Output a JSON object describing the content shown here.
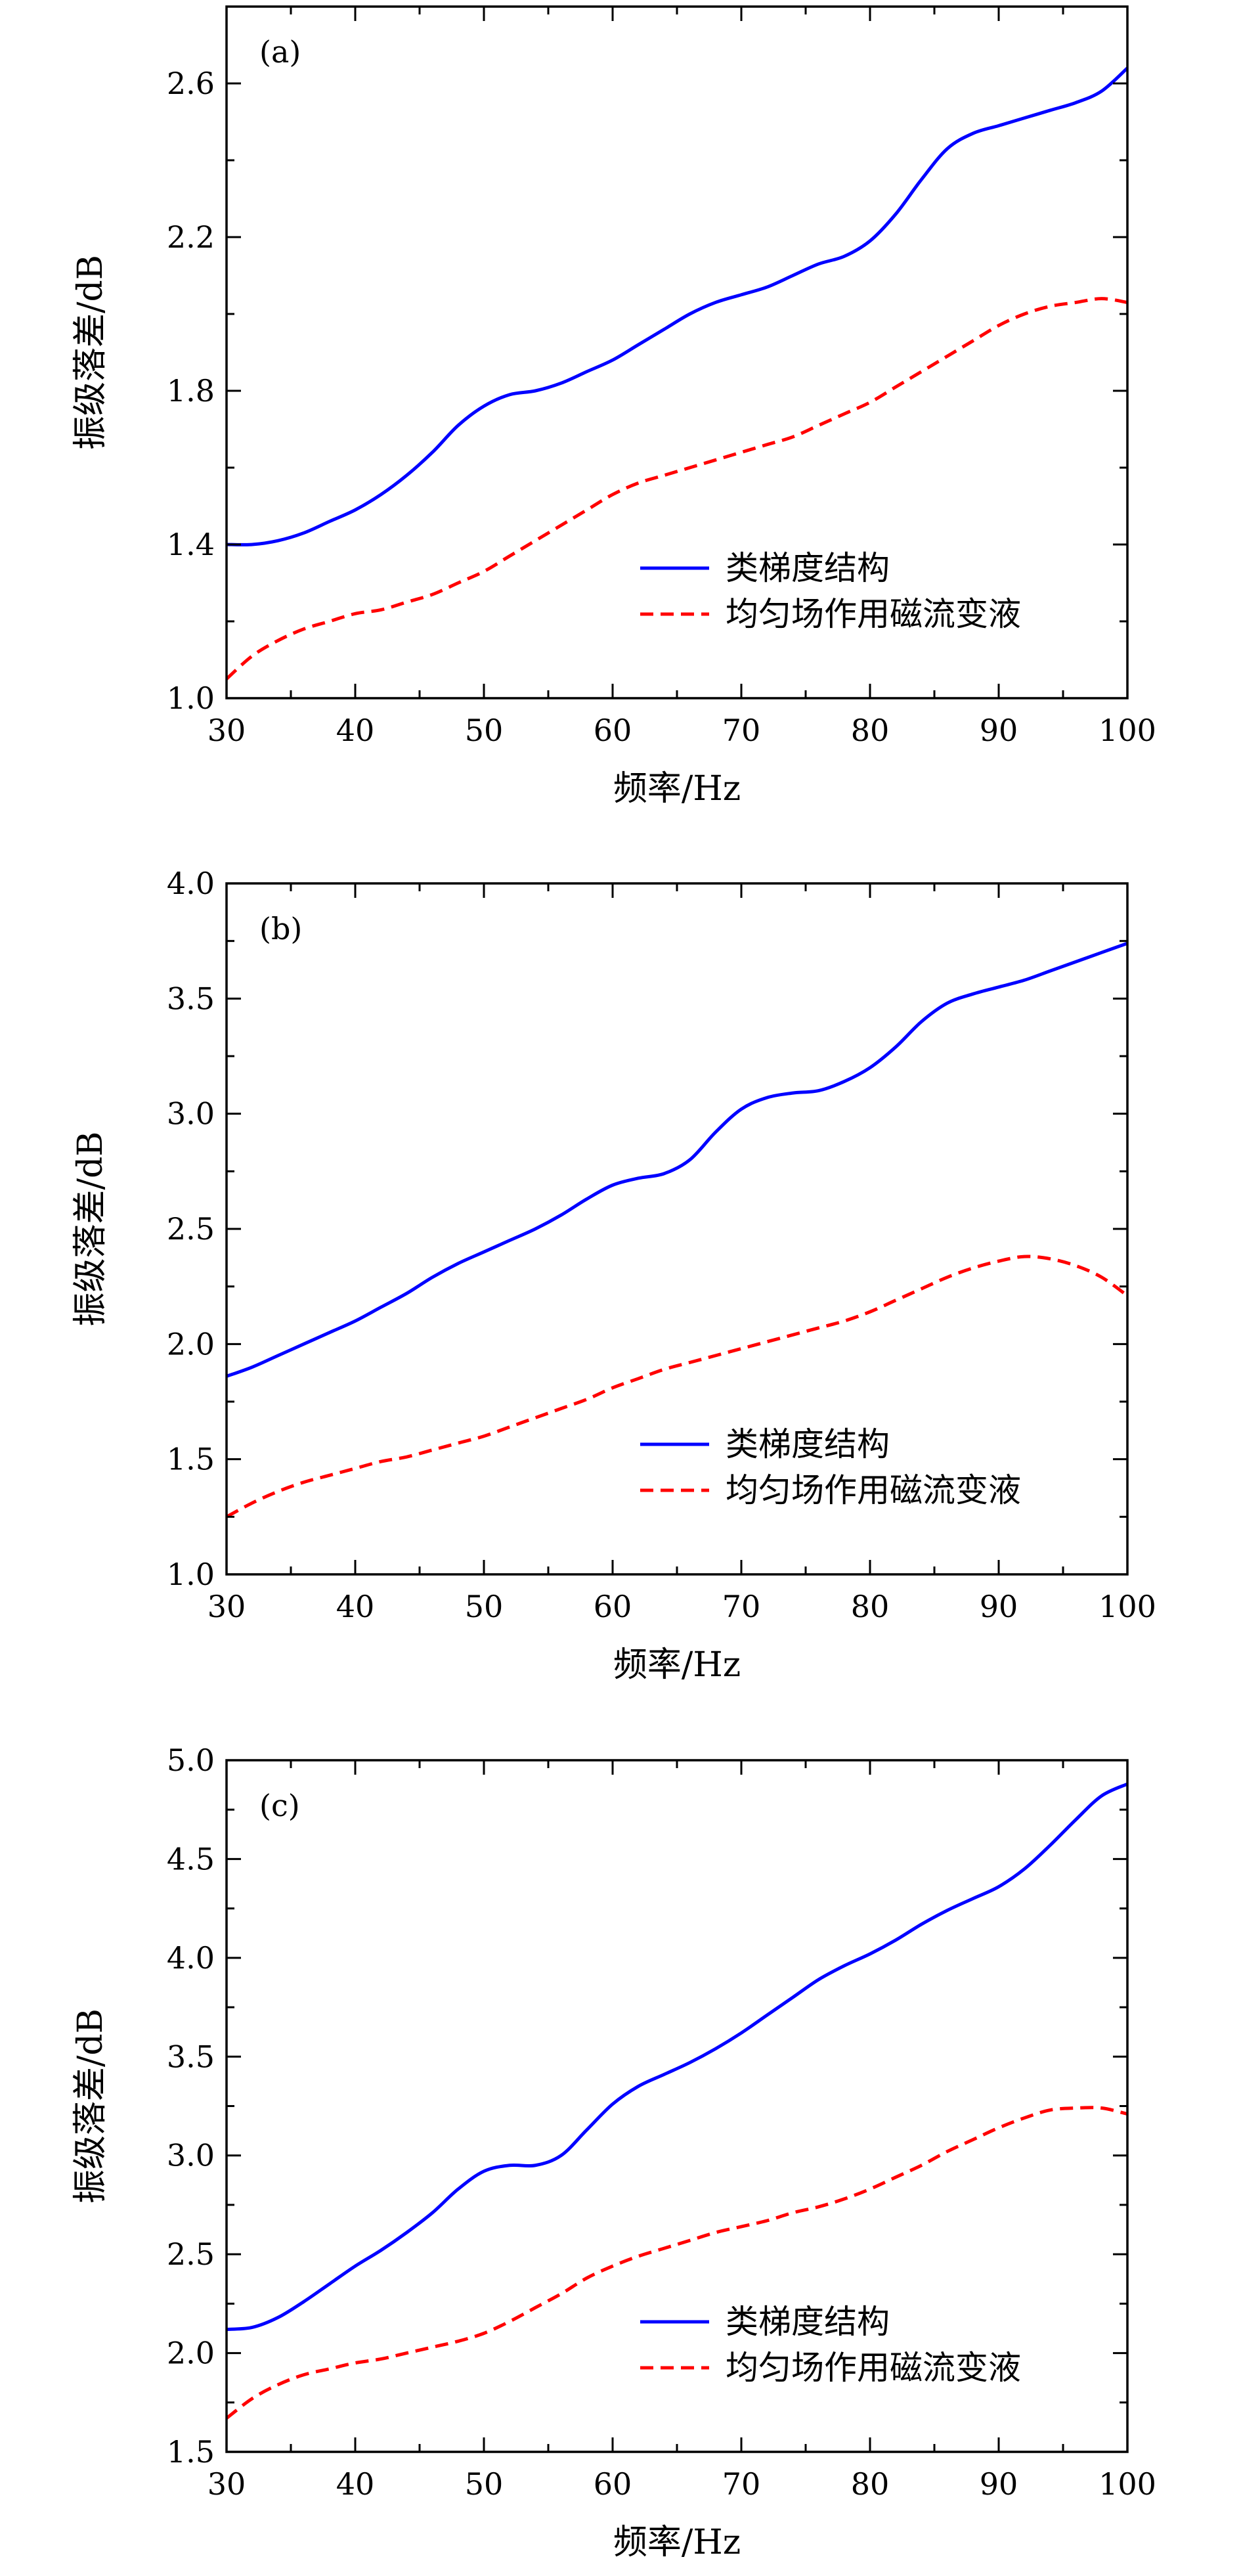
{
  "chart_data": [
    {
      "type": "line",
      "panel_label": "(a)",
      "xlabel": "频率/Hz",
      "ylabel": "振级落差/dB",
      "xlim": [
        30,
        100
      ],
      "ylim": [
        1.0,
        2.8
      ],
      "xticks": [
        30,
        40,
        50,
        60,
        70,
        80,
        90,
        100
      ],
      "yticks": [
        1.0,
        1.4,
        1.8,
        2.2,
        2.6
      ],
      "ytick_labels": [
        "1.0",
        "1.4",
        "1.8",
        "2.2",
        "2.6"
      ],
      "grid": false,
      "legend_position": "lower-right",
      "series": [
        {
          "name": "类梯度结构",
          "color": "#0000ff",
          "dash": "solid",
          "x": [
            30,
            32,
            34,
            36,
            38,
            40,
            42,
            44,
            46,
            48,
            50,
            52,
            54,
            56,
            58,
            60,
            62,
            64,
            66,
            68,
            70,
            72,
            74,
            76,
            78,
            80,
            82,
            84,
            86,
            88,
            90,
            92,
            94,
            96,
            98,
            100
          ],
          "y": [
            1.4,
            1.4,
            1.41,
            1.43,
            1.46,
            1.49,
            1.53,
            1.58,
            1.64,
            1.71,
            1.76,
            1.79,
            1.8,
            1.82,
            1.85,
            1.88,
            1.92,
            1.96,
            2.0,
            2.03,
            2.05,
            2.07,
            2.1,
            2.13,
            2.15,
            2.19,
            2.26,
            2.35,
            2.43,
            2.47,
            2.49,
            2.51,
            2.53,
            2.55,
            2.58,
            2.64
          ]
        },
        {
          "name": "均匀场作用磁流变液",
          "color": "#ff0000",
          "dash": "dashed",
          "x": [
            30,
            32,
            34,
            36,
            38,
            40,
            42,
            44,
            46,
            48,
            50,
            52,
            54,
            56,
            58,
            60,
            62,
            64,
            66,
            68,
            70,
            72,
            74,
            76,
            78,
            80,
            82,
            84,
            86,
            88,
            90,
            92,
            94,
            96,
            98,
            100
          ],
          "y": [
            1.05,
            1.11,
            1.15,
            1.18,
            1.2,
            1.22,
            1.23,
            1.25,
            1.27,
            1.3,
            1.33,
            1.37,
            1.41,
            1.45,
            1.49,
            1.53,
            1.56,
            1.58,
            1.6,
            1.62,
            1.64,
            1.66,
            1.68,
            1.71,
            1.74,
            1.77,
            1.81,
            1.85,
            1.89,
            1.93,
            1.97,
            2.0,
            2.02,
            2.03,
            2.04,
            2.03
          ]
        }
      ]
    },
    {
      "type": "line",
      "panel_label": "(b)",
      "xlabel": "频率/Hz",
      "ylabel": "振级落差/dB",
      "xlim": [
        30,
        100
      ],
      "ylim": [
        1.0,
        4.0
      ],
      "xticks": [
        30,
        40,
        50,
        60,
        70,
        80,
        90,
        100
      ],
      "yticks": [
        1.0,
        1.5,
        2.0,
        2.5,
        3.0,
        3.5,
        4.0
      ],
      "ytick_labels": [
        "1.0",
        "1.5",
        "2.0",
        "2.5",
        "3.0",
        "3.5",
        "4.0"
      ],
      "grid": false,
      "legend_position": "lower-right",
      "series": [
        {
          "name": "类梯度结构",
          "color": "#0000ff",
          "dash": "solid",
          "x": [
            30,
            32,
            34,
            36,
            38,
            40,
            42,
            44,
            46,
            48,
            50,
            52,
            54,
            56,
            58,
            60,
            62,
            64,
            66,
            68,
            70,
            72,
            74,
            76,
            78,
            80,
            82,
            84,
            86,
            88,
            90,
            92,
            94,
            96,
            98,
            100
          ],
          "y": [
            1.86,
            1.9,
            1.95,
            2.0,
            2.05,
            2.1,
            2.16,
            2.22,
            2.29,
            2.35,
            2.4,
            2.45,
            2.5,
            2.56,
            2.63,
            2.69,
            2.72,
            2.74,
            2.8,
            2.92,
            3.02,
            3.07,
            3.09,
            3.1,
            3.14,
            3.2,
            3.29,
            3.4,
            3.48,
            3.52,
            3.55,
            3.58,
            3.62,
            3.66,
            3.7,
            3.74
          ]
        },
        {
          "name": "均匀场作用磁流变液",
          "color": "#ff0000",
          "dash": "dashed",
          "x": [
            30,
            32,
            34,
            36,
            38,
            40,
            42,
            44,
            46,
            48,
            50,
            52,
            54,
            56,
            58,
            60,
            62,
            64,
            66,
            68,
            70,
            72,
            74,
            76,
            78,
            80,
            82,
            84,
            86,
            88,
            90,
            92,
            94,
            96,
            98,
            100
          ],
          "y": [
            1.25,
            1.31,
            1.36,
            1.4,
            1.43,
            1.46,
            1.49,
            1.51,
            1.54,
            1.57,
            1.6,
            1.64,
            1.68,
            1.72,
            1.76,
            1.81,
            1.85,
            1.89,
            1.92,
            1.95,
            1.98,
            2.01,
            2.04,
            2.07,
            2.1,
            2.14,
            2.19,
            2.24,
            2.29,
            2.33,
            2.36,
            2.38,
            2.37,
            2.34,
            2.29,
            2.21
          ]
        }
      ]
    },
    {
      "type": "line",
      "panel_label": "(c)",
      "xlabel": "频率/Hz",
      "ylabel": "振级落差/dB",
      "xlim": [
        30,
        100
      ],
      "ylim": [
        1.5,
        5.0
      ],
      "xticks": [
        30,
        40,
        50,
        60,
        70,
        80,
        90,
        100
      ],
      "yticks": [
        1.5,
        2.0,
        2.5,
        3.0,
        3.5,
        4.0,
        4.5,
        5.0
      ],
      "ytick_labels": [
        "1.5",
        "2.0",
        "2.5",
        "3.0",
        "3.5",
        "4.0",
        "4.5",
        "5.0"
      ],
      "grid": false,
      "legend_position": "lower-right",
      "series": [
        {
          "name": "类梯度结构",
          "color": "#0000ff",
          "dash": "solid",
          "x": [
            30,
            32,
            34,
            36,
            38,
            40,
            42,
            44,
            46,
            48,
            50,
            52,
            54,
            56,
            58,
            60,
            62,
            64,
            66,
            68,
            70,
            72,
            74,
            76,
            78,
            80,
            82,
            84,
            86,
            88,
            90,
            92,
            94,
            96,
            98,
            100
          ],
          "y": [
            2.12,
            2.13,
            2.18,
            2.26,
            2.35,
            2.44,
            2.52,
            2.61,
            2.71,
            2.83,
            2.92,
            2.95,
            2.95,
            3.0,
            3.13,
            3.26,
            3.35,
            3.41,
            3.47,
            3.54,
            3.62,
            3.71,
            3.8,
            3.89,
            3.96,
            4.02,
            4.09,
            4.17,
            4.24,
            4.3,
            4.36,
            4.45,
            4.57,
            4.7,
            4.82,
            4.88
          ]
        },
        {
          "name": "均匀场作用磁流变液",
          "color": "#ff0000",
          "dash": "dashed",
          "x": [
            30,
            32,
            34,
            36,
            38,
            40,
            42,
            44,
            46,
            48,
            50,
            52,
            54,
            56,
            58,
            60,
            62,
            64,
            66,
            68,
            70,
            72,
            74,
            76,
            78,
            80,
            82,
            84,
            86,
            88,
            90,
            92,
            94,
            96,
            98,
            100
          ],
          "y": [
            1.67,
            1.77,
            1.84,
            1.89,
            1.92,
            1.95,
            1.97,
            2.0,
            2.03,
            2.06,
            2.1,
            2.16,
            2.23,
            2.3,
            2.38,
            2.44,
            2.49,
            2.53,
            2.57,
            2.61,
            2.64,
            2.67,
            2.71,
            2.74,
            2.78,
            2.83,
            2.89,
            2.95,
            3.02,
            3.08,
            3.14,
            3.19,
            3.23,
            3.24,
            3.24,
            3.21
          ]
        }
      ]
    }
  ]
}
